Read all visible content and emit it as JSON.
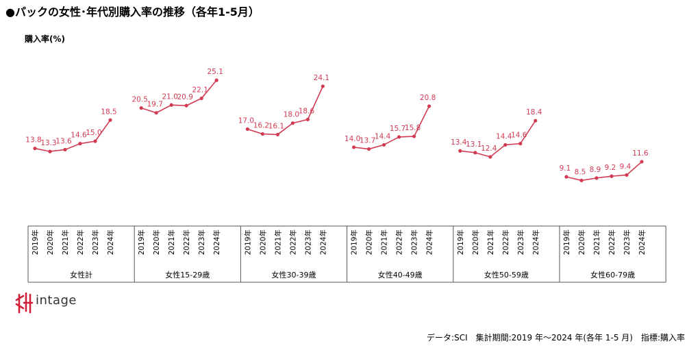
{
  "title": "●パックの女性･年代別購入率の推移（各年1-5月）",
  "logo_text": "intage",
  "footnote": "データ:SCI　集計期間:2019 年～2024 年(各年 1-5 月)　指標:購入率",
  "colors": {
    "line": "#d23a52",
    "label": "#d23a52",
    "axis": "#555555"
  },
  "chart_data": {
    "type": "line",
    "title": "●パックの女性･年代別購入率の推移（各年1-5月）",
    "ylabel": "購入率(%)",
    "xlabel": "",
    "years": [
      "2019年",
      "2020年",
      "2021年",
      "2022年",
      "2023年",
      "2024年"
    ],
    "ylim": [
      0,
      30
    ],
    "grid": false,
    "series": [
      {
        "name": "女性計",
        "values": [
          13.8,
          13.3,
          13.6,
          14.6,
          15.0,
          18.5
        ],
        "labels": [
          "13.8",
          "13.3",
          "13.6",
          "14.6",
          "15.0",
          "18.5"
        ]
      },
      {
        "name": "女性15-29歳",
        "values": [
          20.5,
          19.7,
          21.0,
          20.9,
          22.1,
          25.1
        ],
        "labels": [
          "20.5",
          "19.7",
          "21.0",
          "20.9",
          "22.1",
          "25.1"
        ]
      },
      {
        "name": "女性30-39歳",
        "values": [
          17.0,
          16.2,
          16.1,
          18.0,
          18.6,
          24.1
        ],
        "labels": [
          "17.0",
          "16.2",
          "16.1",
          "18.0",
          "18.6",
          "24.1"
        ]
      },
      {
        "name": "女性40-49歳",
        "values": [
          14.0,
          13.7,
          14.4,
          15.7,
          15.8,
          20.8
        ],
        "labels": [
          "14.0",
          "13.7",
          "14.4",
          "15.7",
          "15.8",
          "20.8"
        ]
      },
      {
        "name": "女性50-59歳",
        "values": [
          13.4,
          13.1,
          12.4,
          14.4,
          14.6,
          18.4
        ],
        "labels": [
          "13.4",
          "13.1",
          "12.4",
          "14.4",
          "14.6",
          "18.4"
        ]
      },
      {
        "name": "女性60-79歳",
        "values": [
          9.1,
          8.5,
          8.9,
          9.2,
          9.4,
          11.6
        ],
        "labels": [
          "9.1",
          "8.5",
          "8.9",
          "9.2",
          "9.4",
          "11.6"
        ]
      }
    ]
  }
}
